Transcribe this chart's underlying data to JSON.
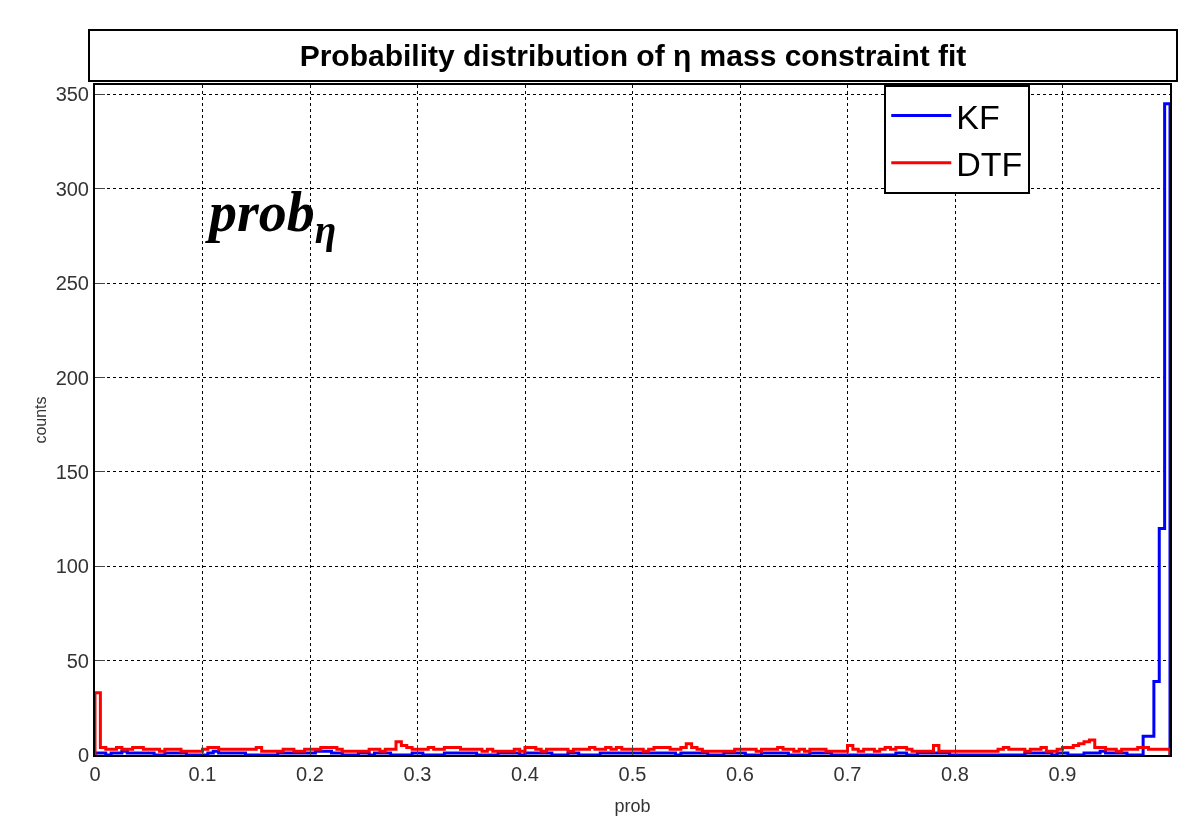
{
  "chart_data": {
    "type": "histogram",
    "title": "Probability distribution of η mass constraint fit",
    "xlabel": "prob",
    "ylabel": "counts",
    "annotations": [
      "prob$_{η}$"
    ],
    "bins": [
      0,
      0.005,
      0.01,
      0.015,
      0.02,
      0.025,
      0.03,
      0.035,
      0.04,
      0.045,
      0.05,
      0.055,
      0.06,
      0.065,
      0.07,
      0.075,
      0.08,
      0.085,
      0.09,
      0.095,
      0.1,
      0.105,
      0.11,
      0.115,
      0.12,
      0.125,
      0.13,
      0.135,
      0.14,
      0.145,
      0.15,
      0.155,
      0.16,
      0.165,
      0.17,
      0.175,
      0.18,
      0.185,
      0.19,
      0.195,
      0.2,
      0.205,
      0.21,
      0.215,
      0.22,
      0.225,
      0.23,
      0.235,
      0.24,
      0.245,
      0.25,
      0.255,
      0.26,
      0.265,
      0.27,
      0.275,
      0.28,
      0.285,
      0.29,
      0.295,
      0.3,
      0.305,
      0.31,
      0.315,
      0.32,
      0.325,
      0.33,
      0.335,
      0.34,
      0.345,
      0.35,
      0.355,
      0.36,
      0.365,
      0.37,
      0.375,
      0.38,
      0.385,
      0.39,
      0.395,
      0.4,
      0.405,
      0.41,
      0.415,
      0.42,
      0.425,
      0.43,
      0.435,
      0.44,
      0.445,
      0.45,
      0.455,
      0.46,
      0.465,
      0.47,
      0.475,
      0.48,
      0.485,
      0.49,
      0.495,
      0.5,
      0.505,
      0.51,
      0.515,
      0.52,
      0.525,
      0.53,
      0.535,
      0.54,
      0.545,
      0.55,
      0.555,
      0.56,
      0.565,
      0.57,
      0.575,
      0.58,
      0.585,
      0.59,
      0.595,
      0.6,
      0.605,
      0.61,
      0.615,
      0.62,
      0.625,
      0.63,
      0.635,
      0.64,
      0.645,
      0.65,
      0.655,
      0.66,
      0.665,
      0.67,
      0.675,
      0.68,
      0.685,
      0.69,
      0.695,
      0.7,
      0.705,
      0.71,
      0.715,
      0.72,
      0.725,
      0.73,
      0.735,
      0.74,
      0.745,
      0.75,
      0.755,
      0.76,
      0.765,
      0.77,
      0.775,
      0.78,
      0.785,
      0.79,
      0.795,
      0.8,
      0.805,
      0.81,
      0.815,
      0.82,
      0.825,
      0.83,
      0.835,
      0.84,
      0.845,
      0.85,
      0.855,
      0.86,
      0.865,
      0.87,
      0.875,
      0.88,
      0.885,
      0.89,
      0.895,
      0.9,
      0.905,
      0.91,
      0.915,
      0.92,
      0.925,
      0.93,
      0.935,
      0.94,
      0.945,
      0.95,
      0.955,
      0.96,
      0.965,
      0.97,
      0.975,
      0.98,
      0.985,
      0.99,
      0.995,
      1
    ],
    "series": [
      {
        "name": "KF",
        "color": "#0000ff",
        "values": [
          1,
          1,
          0,
          1,
          1,
          2,
          1,
          1,
          1,
          1,
          1,
          0,
          0,
          1,
          1,
          1,
          1,
          0,
          0,
          0,
          0,
          1,
          2,
          1,
          1,
          1,
          1,
          1,
          0,
          0,
          0,
          0,
          0,
          0,
          1,
          1,
          1,
          1,
          1,
          1,
          1,
          2,
          2,
          2,
          1,
          1,
          0,
          0,
          0,
          1,
          1,
          0,
          1,
          1,
          1,
          0,
          0,
          0,
          0,
          1,
          1,
          0,
          0,
          0,
          0,
          1,
          1,
          1,
          1,
          1,
          1,
          0,
          0,
          0,
          0,
          1,
          1,
          1,
          1,
          0,
          1,
          1,
          1,
          1,
          1,
          0,
          0,
          0,
          1,
          1,
          0,
          0,
          0,
          0,
          1,
          1,
          1,
          1,
          1,
          1,
          1,
          1,
          1,
          1,
          1,
          1,
          1,
          1,
          0,
          1,
          1,
          1,
          1,
          1,
          0,
          0,
          0,
          1,
          1,
          1,
          1,
          0,
          0,
          0,
          1,
          1,
          1,
          1,
          1,
          0,
          0,
          0,
          0,
          1,
          1,
          1,
          1,
          0,
          0,
          0,
          0,
          0,
          0,
          0,
          0,
          0,
          0,
          0,
          0,
          1,
          1,
          0,
          0,
          1,
          1,
          1,
          1,
          1,
          1,
          0,
          0,
          0,
          0,
          0,
          0,
          0,
          0,
          0,
          0,
          0,
          0,
          0,
          0,
          1,
          1,
          1,
          1,
          1,
          0,
          1,
          1,
          0,
          0,
          0,
          1,
          1,
          1,
          2,
          1,
          1,
          1,
          1,
          0,
          0,
          0,
          10,
          10,
          39,
          120,
          345
        ]
      },
      {
        "name": "DTF",
        "color": "#ff0000",
        "values": [
          33,
          4,
          3,
          3,
          4,
          3,
          3,
          4,
          4,
          3,
          3,
          3,
          2,
          3,
          3,
          3,
          2,
          2,
          2,
          2,
          3,
          4,
          4,
          3,
          3,
          3,
          3,
          3,
          3,
          3,
          4,
          2,
          2,
          2,
          2,
          3,
          3,
          2,
          2,
          3,
          3,
          3,
          4,
          4,
          4,
          3,
          2,
          2,
          2,
          2,
          2,
          3,
          3,
          2,
          3,
          3,
          7,
          5,
          4,
          3,
          3,
          3,
          4,
          3,
          3,
          4,
          4,
          4,
          3,
          3,
          3,
          3,
          2,
          3,
          2,
          2,
          2,
          2,
          3,
          2,
          4,
          4,
          3,
          2,
          3,
          3,
          3,
          3,
          2,
          3,
          3,
          3,
          4,
          3,
          3,
          4,
          3,
          4,
          3,
          3,
          3,
          3,
          2,
          3,
          4,
          4,
          4,
          3,
          3,
          4,
          6,
          4,
          3,
          2,
          2,
          2,
          2,
          2,
          2,
          3,
          3,
          3,
          3,
          2,
          3,
          3,
          3,
          4,
          3,
          3,
          2,
          3,
          2,
          3,
          3,
          3,
          2,
          2,
          2,
          2,
          5,
          3,
          2,
          3,
          3,
          2,
          3,
          4,
          3,
          4,
          4,
          3,
          2,
          2,
          2,
          2,
          5,
          2,
          2,
          2,
          2,
          2,
          2,
          2,
          2,
          2,
          2,
          2,
          3,
          4,
          3,
          3,
          3,
          2,
          3,
          3,
          4,
          2,
          2,
          3,
          4,
          4,
          5,
          6,
          7,
          8,
          4,
          4,
          3,
          3,
          2,
          3,
          3,
          3,
          4,
          4,
          3,
          3,
          3,
          3
        ]
      }
    ],
    "xlim": [
      0,
      1
    ],
    "xticks": [
      0,
      0.1,
      0.2,
      0.3,
      0.4,
      0.5,
      0.6,
      0.7,
      0.8,
      0.9
    ],
    "ylim": [
      0,
      355
    ],
    "yticks": [
      0,
      50,
      100,
      150,
      200,
      250,
      300,
      350
    ],
    "grid": true,
    "legend": "top right",
    "line_style": "solid",
    "marker": "none"
  }
}
